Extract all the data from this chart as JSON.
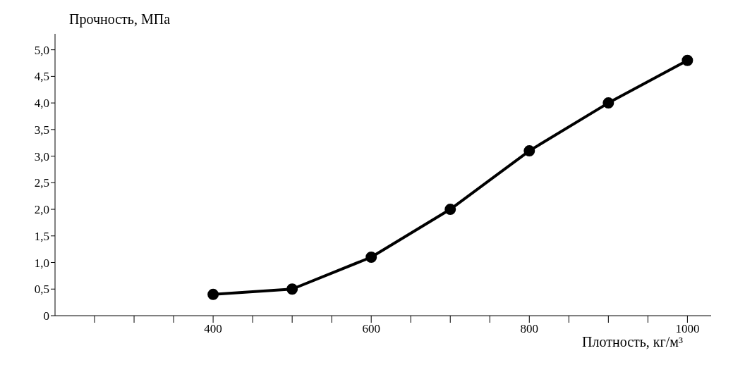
{
  "chart_data": {
    "type": "line",
    "xlabel": "Плотность, кг/м³",
    "ylabel": "Прочность, МПа",
    "x": [
      400,
      500,
      600,
      700,
      800,
      900,
      1000
    ],
    "series": [
      {
        "color": "#000000",
        "values": [
          0.4,
          0.5,
          1.1,
          2.0,
          3.1,
          4.0,
          4.8
        ]
      }
    ],
    "xlim": [
      200,
      1030
    ],
    "xticks": [
      {
        "value": 250,
        "label": null
      },
      {
        "value": 300,
        "label": null
      },
      {
        "value": 350,
        "label": null
      },
      400,
      {
        "value": 450,
        "label": null
      },
      {
        "value": 500,
        "label": null
      },
      {
        "value": 550,
        "label": null
      },
      600,
      {
        "value": 650,
        "label": null
      },
      {
        "value": 700,
        "label": null
      },
      {
        "value": 750,
        "label": null
      },
      800,
      {
        "value": 850,
        "label": null
      },
      {
        "value": 900,
        "label": null
      },
      {
        "value": 950,
        "label": null
      },
      1000
    ],
    "ylim": [
      0,
      5.3
    ],
    "yticks": [
      0,
      {
        "value": 0.5,
        "label": "0,5"
      },
      {
        "value": 1,
        "label": "1,0"
      },
      {
        "value": 1.5,
        "label": "1,5"
      },
      {
        "value": 2,
        "label": "2,0"
      },
      {
        "value": 2.5,
        "label": "2,5"
      },
      {
        "value": 3,
        "label": "3,0"
      },
      {
        "value": 3.5,
        "label": "3,5"
      },
      {
        "value": 4,
        "label": "4,0"
      },
      {
        "value": 4.5,
        "label": "4,5"
      },
      {
        "value": 5,
        "label": "5,0"
      }
    ],
    "marker": "circle",
    "line_style": "solid",
    "grid": false,
    "legend": false
  }
}
